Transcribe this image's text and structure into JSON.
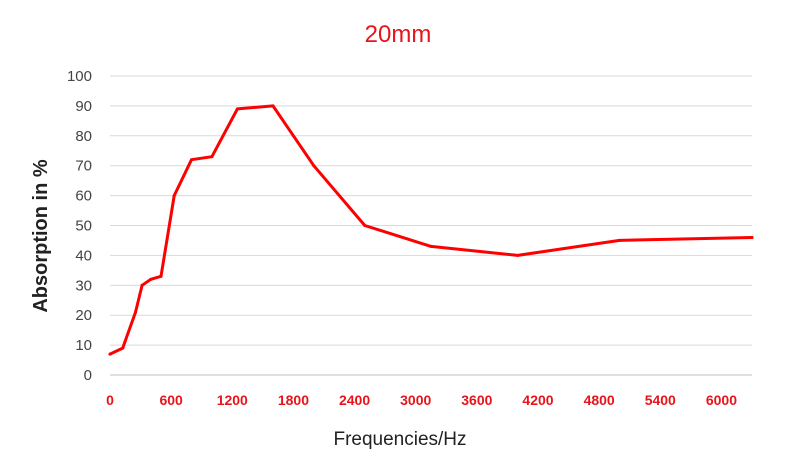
{
  "chart_data": {
    "type": "line",
    "title": "20mm",
    "xlabel": "Frequencies/Hz",
    "ylabel": "Absorption in %",
    "xlim": [
      0,
      6300
    ],
    "ylim": [
      0,
      100
    ],
    "x_ticks": [
      "0",
      "600",
      "1200",
      "1800",
      "2400",
      "3000",
      "3600",
      "4200",
      "4800",
      "5400",
      "6000"
    ],
    "y_ticks": [
      "0",
      "10",
      "20",
      "30",
      "40",
      "50",
      "60",
      "70",
      "80",
      "90",
      "100"
    ],
    "grid": true,
    "legend": "none",
    "colors": {
      "series": "#ff0000",
      "title": "#e8141c",
      "x_ticks": "#e8141c"
    },
    "series": [
      {
        "x": [
          0,
          125,
          250,
          315,
          400,
          500,
          630,
          800,
          1000,
          1250,
          1600,
          2000,
          2500,
          3150,
          4000,
          5000,
          6300
        ],
        "y": [
          7,
          9,
          21,
          30,
          32,
          33,
          60,
          72,
          73,
          89,
          90,
          70,
          50,
          43,
          40,
          45,
          46
        ]
      }
    ]
  }
}
